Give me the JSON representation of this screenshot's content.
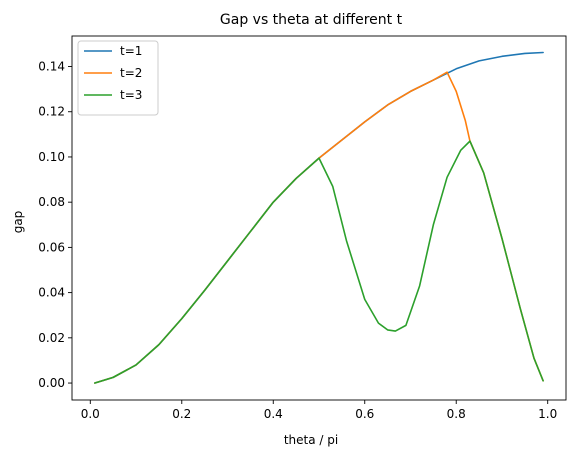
{
  "chart_data": {
    "type": "line",
    "title": "Gap vs theta at different t",
    "xlabel": "theta / pi",
    "ylabel": "gap",
    "xlim": [
      -0.04,
      1.04
    ],
    "ylim": [
      -0.0075,
      0.1535
    ],
    "x_ticks": [
      0.0,
      0.2,
      0.4,
      0.6,
      0.8,
      1.0
    ],
    "x_tick_labels": [
      "0.0",
      "0.2",
      "0.4",
      "0.6",
      "0.8",
      "1.0"
    ],
    "y_ticks": [
      0.0,
      0.02,
      0.04,
      0.06,
      0.08,
      0.1,
      0.12,
      0.14
    ],
    "y_tick_labels": [
      "0.00",
      "0.02",
      "0.04",
      "0.06",
      "0.08",
      "0.10",
      "0.12",
      "0.14"
    ],
    "grid": false,
    "legend_position": "upper-left",
    "series": [
      {
        "name": "t=1",
        "color": "#1f77b4",
        "x": [
          0.01,
          0.05,
          0.1,
          0.15,
          0.2,
          0.25,
          0.3,
          0.35,
          0.4,
          0.45,
          0.5,
          0.55,
          0.6,
          0.65,
          0.7,
          0.75,
          0.8,
          0.85,
          0.9,
          0.95,
          0.99
        ],
        "y": [
          0.0,
          0.0025,
          0.008,
          0.017,
          0.0285,
          0.041,
          0.054,
          0.067,
          0.08,
          0.0905,
          0.0995,
          0.1075,
          0.1155,
          0.123,
          0.129,
          0.134,
          0.139,
          0.1425,
          0.1445,
          0.1458,
          0.1462
        ]
      },
      {
        "name": "t=2",
        "color": "#ff7f0e",
        "x": [
          0.01,
          0.05,
          0.1,
          0.15,
          0.2,
          0.25,
          0.3,
          0.35,
          0.4,
          0.45,
          0.5,
          0.55,
          0.6,
          0.65,
          0.7,
          0.75,
          0.78,
          0.8,
          0.82,
          0.83,
          0.86,
          0.9,
          0.94,
          0.97,
          0.99
        ],
        "y": [
          0.0,
          0.0025,
          0.008,
          0.017,
          0.0285,
          0.041,
          0.054,
          0.067,
          0.08,
          0.0905,
          0.0995,
          0.1075,
          0.1155,
          0.123,
          0.129,
          0.134,
          0.1375,
          0.129,
          0.116,
          0.107,
          0.093,
          0.064,
          0.033,
          0.011,
          0.001
        ]
      },
      {
        "name": "t=3",
        "color": "#2ca02c",
        "x": [
          0.01,
          0.05,
          0.1,
          0.15,
          0.2,
          0.25,
          0.3,
          0.35,
          0.4,
          0.45,
          0.5,
          0.53,
          0.56,
          0.6,
          0.63,
          0.65,
          0.667,
          0.69,
          0.72,
          0.75,
          0.78,
          0.81,
          0.83,
          0.86,
          0.9,
          0.94,
          0.97,
          0.99
        ],
        "y": [
          0.0,
          0.0025,
          0.008,
          0.017,
          0.0285,
          0.041,
          0.054,
          0.067,
          0.08,
          0.0905,
          0.0995,
          0.087,
          0.063,
          0.037,
          0.0265,
          0.0235,
          0.023,
          0.0255,
          0.043,
          0.07,
          0.091,
          0.103,
          0.107,
          0.093,
          0.064,
          0.033,
          0.011,
          0.001
        ]
      }
    ]
  }
}
